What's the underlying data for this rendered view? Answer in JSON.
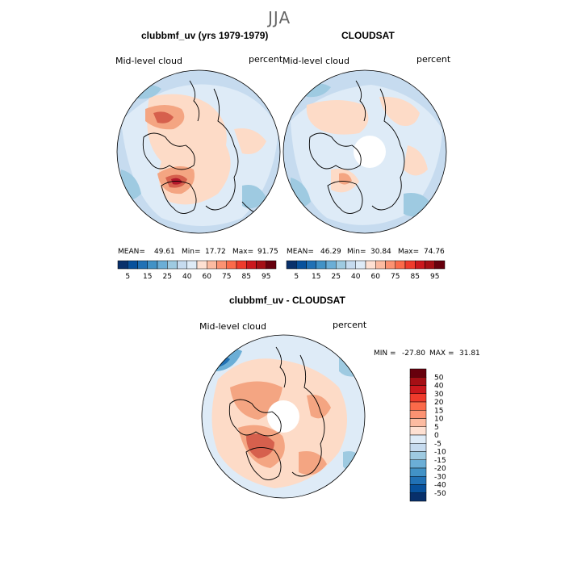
{
  "page": {
    "title": "JJA"
  },
  "colors": {
    "ocean_light_blue": "#c6dbef",
    "pale_blue": "#deebf7",
    "peach": "#fddbc7",
    "orange": "#f4a582",
    "red": "#d6604d",
    "dark_red": "#b2182b",
    "coastline": "#000000"
  },
  "chart_data": [
    {
      "type": "heatmap",
      "projection": "north-polar-stereographic",
      "title": "clubbmf_uv (yrs 1979-1979)",
      "left_label": "Mid-level cloud",
      "right_label": "percent",
      "stats": {
        "mean_label": "MEAN=",
        "mean": "49.61",
        "min_label": "Min=",
        "min": "17.72",
        "max_label": "Max=",
        "max": "91.75"
      },
      "colorbar": {
        "orientation": "horizontal",
        "tick_labels": [
          "5",
          "15",
          "25",
          "40",
          "60",
          "75",
          "85",
          "95"
        ],
        "levels": [
          5,
          10,
          15,
          20,
          25,
          30,
          40,
          50,
          60,
          70,
          75,
          80,
          85,
          90,
          95
        ],
        "colors": [
          "#08306b",
          "#08519c",
          "#2171b5",
          "#4292c6",
          "#6baed6",
          "#9ecae1",
          "#c6dbef",
          "#deebf7",
          "#fee0d2",
          "#fcbba1",
          "#fc9272",
          "#fb6a4a",
          "#ef3b2c",
          "#cb181d",
          "#a50f15",
          "#67000d"
        ]
      }
    },
    {
      "type": "heatmap",
      "projection": "north-polar-stereographic",
      "title": "CLOUDSAT",
      "left_label": "Mid-level cloud",
      "right_label": "percent",
      "stats": {
        "mean_label": "MEAN=",
        "mean": "46.29",
        "min_label": "Min=",
        "min": "30.84",
        "max_label": "Max=",
        "max": "74.76"
      },
      "colorbar": {
        "orientation": "horizontal",
        "tick_labels": [
          "5",
          "15",
          "25",
          "40",
          "60",
          "75",
          "85",
          "95"
        ]
      }
    },
    {
      "type": "heatmap",
      "projection": "north-polar-stereographic",
      "title": "clubbmf_uv - CLOUDSAT",
      "left_label": "Mid-level cloud",
      "right_label": "percent",
      "stats": {
        "min_label": "MIN =",
        "min": "-27.80",
        "max_label": "MAX =",
        "max": "31.81"
      },
      "colorbar": {
        "orientation": "vertical",
        "tick_labels": [
          "50",
          "40",
          "30",
          "20",
          "15",
          "10",
          "5",
          "0",
          "-5",
          "-10",
          "-15",
          "-20",
          "-30",
          "-40",
          "-50"
        ],
        "colors": [
          "#67000d",
          "#a50f15",
          "#cb181d",
          "#ef3b2c",
          "#fb6a4a",
          "#fc9272",
          "#fcbba1",
          "#fee0d2",
          "#deebf7",
          "#c6dbef",
          "#9ecae1",
          "#6baed6",
          "#4292c6",
          "#2171b5",
          "#08519c",
          "#08306b"
        ]
      }
    }
  ]
}
